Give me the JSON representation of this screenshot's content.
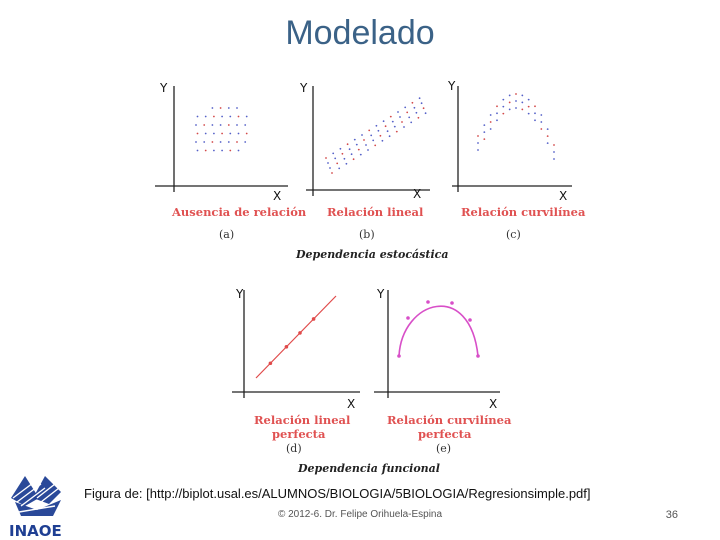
{
  "title": "Modelado",
  "panels": [
    {
      "label": "Ausencia de relación",
      "sub": "(a)",
      "y_axis": "Y",
      "x_axis": "X"
    },
    {
      "label": "Relación lineal",
      "sub": "(b)",
      "y_axis": "Y",
      "x_axis": "X"
    },
    {
      "label": "Relación curvilínea",
      "sub": "(c)",
      "y_axis": "Y",
      "x_axis": "X"
    },
    {
      "label_line1": "Relación lineal",
      "label_line2": "perfecta",
      "sub": "(d)",
      "y_axis": "Y",
      "x_axis": "X"
    },
    {
      "label_line1": "Relación curvilínea",
      "label_line2": "perfecta",
      "sub": "(e)",
      "y_axis": "Y",
      "x_axis": "X"
    }
  ],
  "group_captions": {
    "top": "Dependencia estocástica",
    "bottom": "Dependencia funcional"
  },
  "caption": "Figura de: [http://biplot.usal.es/ALUMNOS/BIOLOGIA/5BIOLOGIA/Regresionsimple.pdf]",
  "footer": "© 2012-6. Dr. Felipe Orihuela-Espina",
  "page_number": "36",
  "logo": {
    "text": "INAOE",
    "color": "#1f3f93"
  },
  "colors": {
    "title": "#3b6287",
    "label": "#e05252",
    "points_blue": "#5561c8",
    "points_red": "#d34a4a",
    "curve_pink": "#d84fc8",
    "line_red": "#e04a4a"
  }
}
